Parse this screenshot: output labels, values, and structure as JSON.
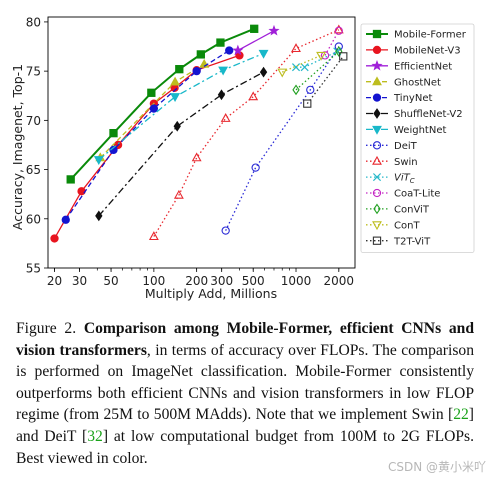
{
  "chart_data": {
    "type": "line",
    "title": "",
    "xlabel": "Multiply Add, Millions",
    "ylabel": "Accuracy, Imagenet, Top-1",
    "x_scale": "log",
    "xlim": [
      18,
      2600
    ],
    "ylim": [
      55,
      80.5
    ],
    "x_ticks": [
      20,
      30,
      50,
      100,
      200,
      300,
      500,
      1000,
      2000
    ],
    "x_tick_labels": [
      "20",
      "30",
      "50",
      "100",
      "200",
      "300",
      "500",
      "1000",
      "2000"
    ],
    "y_ticks": [
      55,
      60,
      65,
      70,
      75,
      80
    ],
    "y_tick_labels": [
      "55",
      "60",
      "65",
      "70",
      "75",
      "80"
    ],
    "grid": false,
    "legend_position": "right",
    "series": [
      {
        "name": "Mobile-Former",
        "color": "#0a8a0a",
        "marker": "square",
        "line": "solid",
        "filled": true,
        "width": 2,
        "points": [
          [
            26,
            64
          ],
          [
            52,
            68.7
          ],
          [
            96,
            72.8
          ],
          [
            151,
            75.2
          ],
          [
            214,
            76.7
          ],
          [
            294,
            77.9
          ],
          [
            508,
            79.3
          ]
        ]
      },
      {
        "name": "MobileNet-V3",
        "color": "#e8141f",
        "marker": "circle",
        "line": "solid",
        "filled": true,
        "width": 1.3,
        "points": [
          [
            20,
            58
          ],
          [
            31,
            62.8
          ],
          [
            56,
            67.5
          ],
          [
            100,
            71.7
          ],
          [
            140,
            73.3
          ],
          [
            200,
            75.1
          ],
          [
            400,
            76.6
          ]
        ]
      },
      {
        "name": "EfficientNet",
        "color": "#a020d8",
        "marker": "star",
        "line": "solid",
        "filled": true,
        "width": 1.3,
        "points": [
          [
            390,
            77.1
          ],
          [
            700,
            79.1
          ]
        ]
      },
      {
        "name": "GhostNet",
        "color": "#bdbd1f",
        "marker": "triangle-up",
        "line": "dashed",
        "filled": true,
        "width": 1.3,
        "points": [
          [
            42,
            66.2
          ],
          [
            141,
            73.9
          ],
          [
            226,
            75.7
          ]
        ]
      },
      {
        "name": "TinyNet",
        "color": "#1414d0",
        "marker": "circle",
        "line": "dashed",
        "filled": true,
        "width": 1.3,
        "points": [
          [
            24,
            59.9
          ],
          [
            52,
            67
          ],
          [
            100,
            71.2
          ],
          [
            200,
            75
          ],
          [
            339,
            77.1
          ]
        ]
      },
      {
        "name": "ShuffleNet-V2",
        "color": "#111111",
        "marker": "diamond",
        "line": "dashdot",
        "filled": true,
        "width": 1.3,
        "points": [
          [
            41,
            60.3
          ],
          [
            146,
            69.4
          ],
          [
            299,
            72.6
          ],
          [
            591,
            74.9
          ]
        ]
      },
      {
        "name": "WeightNet",
        "color": "#19b8c9",
        "marker": "triangle-down",
        "line": "dashdot",
        "filled": true,
        "width": 1.3,
        "points": [
          [
            41,
            66
          ],
          [
            141,
            72.4
          ],
          [
            307,
            75.1
          ],
          [
            591,
            76.8
          ]
        ]
      },
      {
        "name": "DeiT",
        "color": "#2a2ad6",
        "marker": "circle",
        "line": "dotted",
        "filled": false,
        "width": 1.3,
        "points": [
          [
            320,
            58.8
          ],
          [
            520,
            65.2
          ],
          [
            1260,
            73.1
          ],
          [
            2000,
            77.5
          ]
        ]
      },
      {
        "name": "Swin",
        "color": "#e8282f",
        "marker": "triangle-up",
        "line": "dotted",
        "filled": false,
        "width": 1.3,
        "points": [
          [
            100,
            58.2
          ],
          [
            150,
            62.4
          ],
          [
            200,
            66.2
          ],
          [
            320,
            70.2
          ],
          [
            500,
            72.4
          ],
          [
            1000,
            77.3
          ],
          [
            2000,
            79.2
          ]
        ]
      },
      {
        "name": "ViT_C",
        "color": "#25b8c9",
        "marker": "x",
        "line": "dotted",
        "filled": false,
        "width": 1.3,
        "points": [
          [
            1000,
            75.4
          ],
          [
            1150,
            75.4
          ],
          [
            1950,
            77
          ]
        ]
      },
      {
        "name": "CoaT-Lite",
        "color": "#c426c4",
        "marker": "circle",
        "line": "dotted",
        "filled": false,
        "width": 1.3,
        "points": [
          [
            1600,
            76.6
          ],
          [
            2000,
            79.1
          ]
        ]
      },
      {
        "name": "ConViT",
        "color": "#21a021",
        "marker": "diamond",
        "line": "dotted",
        "filled": false,
        "width": 1.3,
        "points": [
          [
            1000,
            73.1
          ],
          [
            2000,
            77
          ]
        ]
      },
      {
        "name": "ConT",
        "color": "#bdbd1f",
        "marker": "triangle-down",
        "line": "dotted",
        "filled": false,
        "width": 1.3,
        "points": [
          [
            800,
            74.9
          ],
          [
            1500,
            76.6
          ]
        ]
      },
      {
        "name": "T2T-ViT",
        "color": "#333333",
        "marker": "square",
        "line": "dotted",
        "filled": false,
        "width": 1.3,
        "points": [
          [
            1200,
            71.7
          ],
          [
            2150,
            76.5
          ]
        ]
      }
    ]
  },
  "caption": {
    "figure_label": "Figure 2.",
    "bold_text": "Comparison among Mobile-Former, efficient CNNs and vision transformers",
    "text_1": ", in terms of accuracy over FLOPs. The comparison is performed on ImageNet classification. Mobile-Former consistently outperforms both efficient CNNs and vision transformers in low FLOP regime (from 25M to 500M MAdds). Note that we implement Swin [",
    "ref_1": "22",
    "text_2": "] and DeiT [",
    "ref_2": "32",
    "text_3": "] at low computational budget from 100M to 2G FLOPs. Best viewed in color."
  },
  "watermark": "CSDN @黄小米吖"
}
